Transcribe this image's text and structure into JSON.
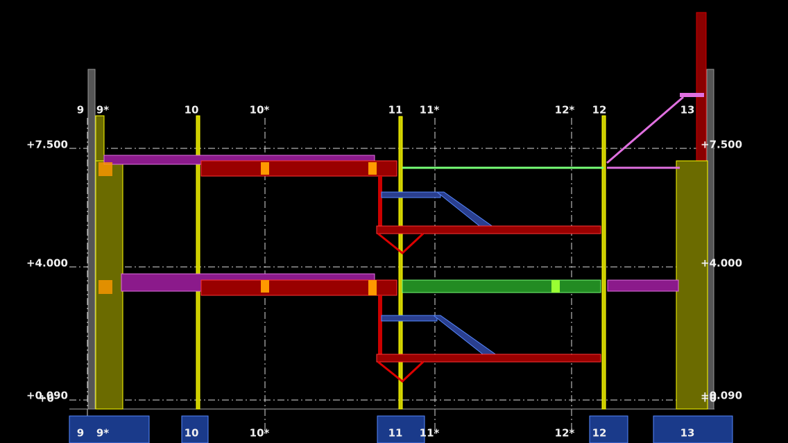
{
  "axes_top": [
    "9",
    "9*",
    "10",
    "10*",
    "11",
    "11*",
    "12*",
    "12",
    "13"
  ],
  "axes_bottom": [
    "9",
    "9*",
    "10",
    "10*",
    "11",
    "11*",
    "12*",
    "12",
    "13"
  ],
  "levels_left": [
    "+7.500",
    "+4.000",
    "+0.090",
    "+0"
  ],
  "levels_right": [
    "+7.500",
    "+4.000",
    "+0.090",
    "+0"
  ]
}
